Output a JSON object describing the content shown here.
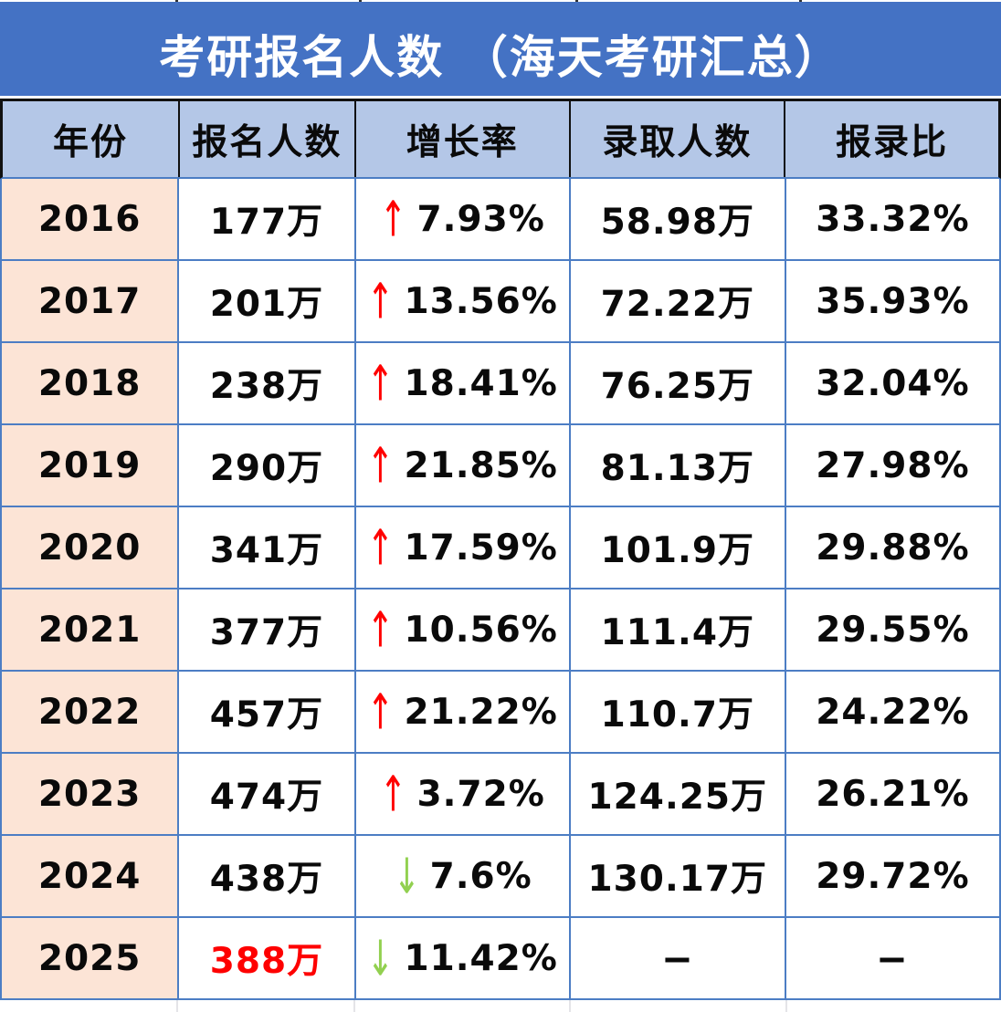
{
  "title": "考研报名人数 （海天考研汇总）",
  "columns": [
    "年份",
    "报名人数",
    "增长率",
    "录取人数",
    "报录比"
  ],
  "rows": [
    {
      "year": "2016",
      "applicants": "177万",
      "growth": "7.93%",
      "growth_dir": "up",
      "admitted": "58.98万",
      "ratio": "33.32%"
    },
    {
      "year": "2017",
      "applicants": "201万",
      "growth": "13.56%",
      "growth_dir": "up",
      "admitted": "72.22万",
      "ratio": "35.93%"
    },
    {
      "year": "2018",
      "applicants": "238万",
      "growth": "18.41%",
      "growth_dir": "up",
      "admitted": "76.25万",
      "ratio": "32.04%"
    },
    {
      "year": "2019",
      "applicants": "290万",
      "growth": "21.85%",
      "growth_dir": "up",
      "admitted": "81.13万",
      "ratio": "27.98%"
    },
    {
      "year": "2020",
      "applicants": "341万",
      "growth": "17.59%",
      "growth_dir": "up",
      "admitted": "101.9万",
      "ratio": "29.88%"
    },
    {
      "year": "2021",
      "applicants": "377万",
      "growth": "10.56%",
      "growth_dir": "up",
      "admitted": "111.4万",
      "ratio": "29.55%"
    },
    {
      "year": "2022",
      "applicants": "457万",
      "growth": "21.22%",
      "growth_dir": "up",
      "admitted": "110.7万",
      "ratio": "24.22%"
    },
    {
      "year": "2023",
      "applicants": "474万",
      "growth": "3.72%",
      "growth_dir": "up",
      "admitted": "124.25万",
      "ratio": "26.21%"
    },
    {
      "year": "2024",
      "applicants": "438万",
      "growth": "7.6%",
      "growth_dir": "down",
      "admitted": "130.17万",
      "ratio": "29.72%"
    },
    {
      "year": "2025",
      "applicants": "388万",
      "growth": "11.42%",
      "growth_dir": "down",
      "admitted": "–",
      "ratio": "–"
    }
  ],
  "icons": {
    "up_arrow": "↑",
    "down_arrow": "↓"
  },
  "colors": {
    "title_bg": "#4472C4",
    "title_text": "#FFFFFF",
    "header_bg": "#B4C7E7",
    "header_border": "#111111",
    "year_col_bg": "#FCE4D6",
    "grid_border": "#4C7DC4",
    "up_arrow": "#FF0000",
    "down_arrow": "#92D050",
    "highlight_red": "#FE0000"
  },
  "chart_data": {
    "type": "table",
    "title": "考研报名人数 （海天考研汇总）",
    "columns": [
      "年份",
      "报名人数",
      "增长率",
      "录取人数",
      "报录比"
    ],
    "rows": [
      [
        "2016",
        "177万",
        "↑7.93%",
        "58.98万",
        "33.32%"
      ],
      [
        "2017",
        "201万",
        "↑13.56%",
        "72.22万",
        "35.93%"
      ],
      [
        "2018",
        "238万",
        "↑18.41%",
        "76.25万",
        "32.04%"
      ],
      [
        "2019",
        "290万",
        "↑21.85%",
        "81.13万",
        "27.98%"
      ],
      [
        "2020",
        "341万",
        "↑17.59%",
        "101.9万",
        "29.88%"
      ],
      [
        "2021",
        "377万",
        "↑10.56%",
        "111.4万",
        "29.55%"
      ],
      [
        "2022",
        "457万",
        "↑21.22%",
        "110.7万",
        "24.22%"
      ],
      [
        "2023",
        "474万",
        "↑3.72%",
        "124.25万",
        "26.21%"
      ],
      [
        "2024",
        "438万",
        "↓7.6%",
        "130.17万",
        "29.72%"
      ],
      [
        "2025",
        "388万",
        "↓11.42%",
        "–",
        "–"
      ]
    ]
  }
}
